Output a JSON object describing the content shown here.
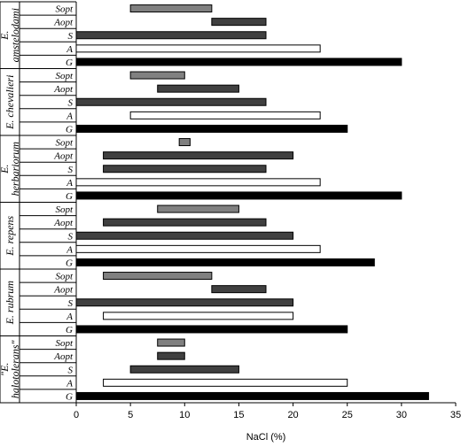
{
  "chart_data": {
    "type": "bar",
    "orientation": "horizontal",
    "xlabel": "NaCl (%)",
    "xlim": [
      0,
      35
    ],
    "xticks": [
      0,
      5,
      10,
      15,
      20,
      25,
      30,
      35
    ],
    "grid": false,
    "legend": "none",
    "colors": {
      "Sopt": "#808080",
      "Aopt": "#404040",
      "S": "#404040",
      "A": "#ffffff",
      "G": "#000000"
    },
    "groups": [
      {
        "name_lines": [
          "E.",
          "amstelodami"
        ],
        "bars": [
          {
            "label": "Sopt",
            "start": 5,
            "end": 12.5
          },
          {
            "label": "Aopt",
            "start": 12.5,
            "end": 17.5
          },
          {
            "label": "S",
            "start": 0,
            "end": 17.5
          },
          {
            "label": "A",
            "start": 0,
            "end": 22.5
          },
          {
            "label": "G",
            "start": 0,
            "end": 30
          }
        ]
      },
      {
        "name_lines": [
          "E. chevalieri"
        ],
        "bars": [
          {
            "label": "Sopt",
            "start": 5,
            "end": 10
          },
          {
            "label": "Aopt",
            "start": 7.5,
            "end": 15
          },
          {
            "label": "S",
            "start": 0,
            "end": 17.5
          },
          {
            "label": "A",
            "start": 5,
            "end": 22.5
          },
          {
            "label": "G",
            "start": 0,
            "end": 25
          }
        ]
      },
      {
        "name_lines": [
          "E.",
          "herbariorum"
        ],
        "bars": [
          {
            "label": "Sopt",
            "start": 9.5,
            "end": 10.5
          },
          {
            "label": "Aopt",
            "start": 2.5,
            "end": 20
          },
          {
            "label": "S",
            "start": 2.5,
            "end": 17.5
          },
          {
            "label": "A",
            "start": 0,
            "end": 22.5
          },
          {
            "label": "G",
            "start": 0,
            "end": 30
          }
        ]
      },
      {
        "name_lines": [
          "E. repens"
        ],
        "bars": [
          {
            "label": "Sopt",
            "start": 7.5,
            "end": 15
          },
          {
            "label": "Aopt",
            "start": 2.5,
            "end": 17.5
          },
          {
            "label": "S",
            "start": 0,
            "end": 20
          },
          {
            "label": "A",
            "start": 0,
            "end": 22.5
          },
          {
            "label": "G",
            "start": 0,
            "end": 27.5
          }
        ]
      },
      {
        "name_lines": [
          "E. rubrum"
        ],
        "bars": [
          {
            "label": "Sopt",
            "start": 2.5,
            "end": 12.5
          },
          {
            "label": "Aopt",
            "start": 12.5,
            "end": 17.5
          },
          {
            "label": "S",
            "start": 0,
            "end": 20
          },
          {
            "label": "A",
            "start": 2.5,
            "end": 20
          },
          {
            "label": "G",
            "start": 0,
            "end": 25
          }
        ]
      },
      {
        "name_lines": [
          "\"E.",
          "halotolerans\""
        ],
        "bars": [
          {
            "label": "Sopt",
            "start": 7.5,
            "end": 10
          },
          {
            "label": "Aopt",
            "start": 7.5,
            "end": 10
          },
          {
            "label": "S",
            "start": 5,
            "end": 15
          },
          {
            "label": "A",
            "start": 2.5,
            "end": 25
          },
          {
            "label": "G",
            "start": 0,
            "end": 32.5
          }
        ]
      }
    ]
  }
}
